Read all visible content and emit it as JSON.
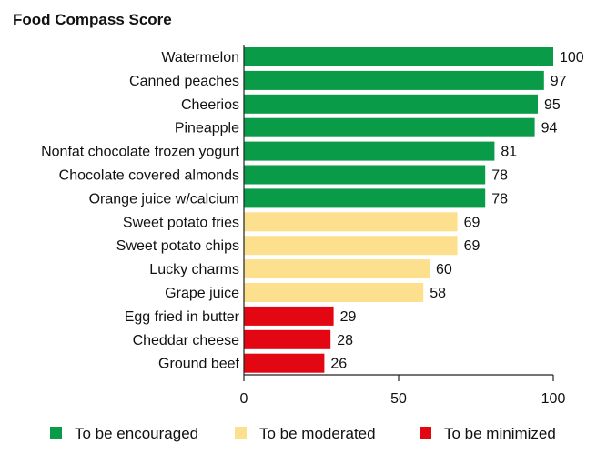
{
  "chart_data": {
    "type": "bar",
    "orientation": "horizontal",
    "title": "Food Compass Score",
    "xlabel": "",
    "ylabel": "",
    "xlim": [
      0,
      100
    ],
    "x_ticks": [
      0,
      50,
      100
    ],
    "grid": false,
    "legend_position": "bottom",
    "categories": [
      "Watermelon",
      "Canned peaches",
      "Cheerios",
      "Pineapple",
      "Nonfat chocolate frozen yogurt",
      "Chocolate covered almonds",
      "Orange juice w/calcium",
      "Sweet potato fries",
      "Sweet potato chips",
      "Lucky charms",
      "Grape juice",
      "Egg fried in butter",
      "Cheddar cheese",
      "Ground beef"
    ],
    "values": [
      100,
      97,
      95,
      94,
      81,
      78,
      78,
      69,
      69,
      60,
      58,
      29,
      28,
      26
    ],
    "groups": [
      "encouraged",
      "encouraged",
      "encouraged",
      "encouraged",
      "encouraged",
      "encouraged",
      "encouraged",
      "moderated",
      "moderated",
      "moderated",
      "moderated",
      "minimized",
      "minimized",
      "minimized"
    ],
    "legend": [
      {
        "key": "encouraged",
        "label": "To be encouraged",
        "color": "#0a9b48"
      },
      {
        "key": "moderated",
        "label": "To be moderated",
        "color": "#fde08e"
      },
      {
        "key": "minimized",
        "label": "To be minimized",
        "color": "#e30613"
      }
    ]
  }
}
